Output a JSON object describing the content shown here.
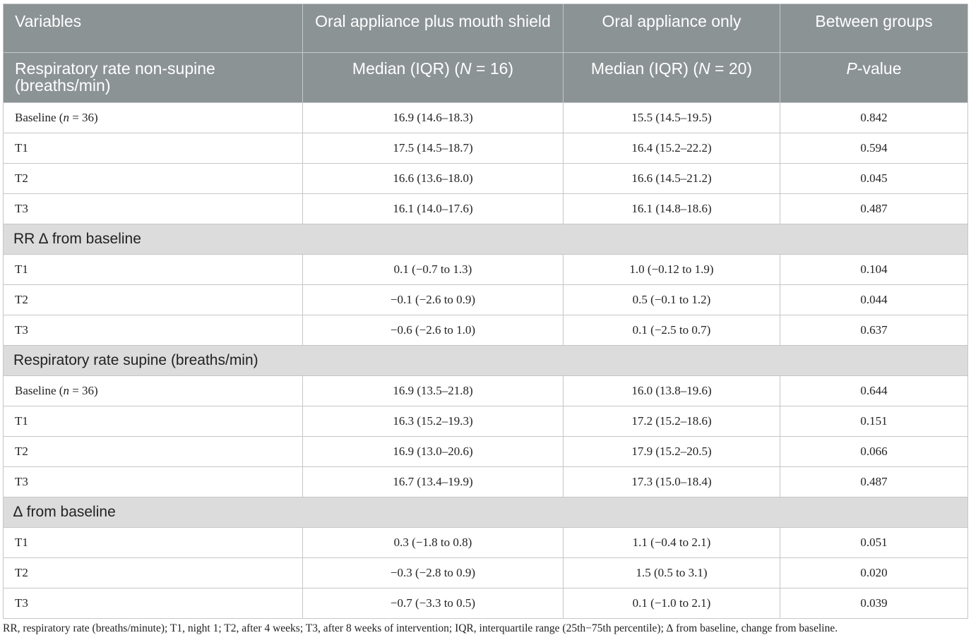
{
  "header": {
    "row1": [
      "Variables",
      "Oral appliance plus mouth shield",
      "Oral appliance only",
      "Between groups"
    ],
    "row2": {
      "variable": "Respiratory rate non-supine (breaths/min)",
      "col1_pre": "Median (IQR) (",
      "col1_n": "N",
      "col1_post": " = 16)",
      "col2_pre": "Median (IQR) (",
      "col2_n": "N",
      "col2_post": " = 20)",
      "col3_italic": "P",
      "col3_post": "-value"
    }
  },
  "sections": {
    "rr_delta": "RR ∆ from baseline",
    "supine": "Respiratory rate supine (breaths/min)",
    "supine_delta": "∆ from baseline"
  },
  "rows": {
    "nonsupine": [
      {
        "label_pre": "Baseline (",
        "label_n": "n",
        "label_post": " = 36)",
        "g1": "16.9 (14.6–18.3)",
        "g2": "15.5 (14.5–19.5)",
        "p": "0.842"
      },
      {
        "label": "T1",
        "g1": "17.5 (14.5–18.7)",
        "g2": "16.4 (15.2–22.2)",
        "p": "0.594"
      },
      {
        "label": "T2",
        "g1": "16.6 (13.6–18.0)",
        "g2": "16.6 (14.5–21.2)",
        "p": "0.045"
      },
      {
        "label": "T3",
        "g1": "16.1 (14.0–17.6)",
        "g2": "16.1 (14.8–18.6)",
        "p": "0.487"
      }
    ],
    "rr_delta": [
      {
        "label": "T1",
        "g1": "0.1 (−0.7 to 1.3)",
        "g2": "1.0 (−0.12 to 1.9)",
        "p": "0.104"
      },
      {
        "label": "T2",
        "g1": "−0.1 (−2.6 to 0.9)",
        "g2": "0.5 (−0.1 to 1.2)",
        "p": "0.044"
      },
      {
        "label": "T3",
        "g1": "−0.6 (−2.6 to 1.0)",
        "g2": "0.1 (−2.5 to 0.7)",
        "p": "0.637"
      }
    ],
    "supine": [
      {
        "label_pre": "Baseline (",
        "label_n": "n",
        "label_post": " = 36)",
        "g1": "16.9 (13.5–21.8)",
        "g2": "16.0 (13.8–19.6)",
        "p": "0.644"
      },
      {
        "label": "T1",
        "g1": "16.3 (15.2–19.3)",
        "g2": "17.2 (15.2–18.6)",
        "p": "0.151"
      },
      {
        "label": "T2",
        "g1": "16.9 (13.0–20.6)",
        "g2": "17.9 (15.2–20.5)",
        "p": "0.066"
      },
      {
        "label": "T3",
        "g1": "16.7 (13.4–19.9)",
        "g2": "17.3 (15.0–18.4)",
        "p": "0.487"
      }
    ],
    "supine_delta": [
      {
        "label": "T1",
        "g1": "0.3 (−1.8 to 0.8)",
        "g2": "1.1 (−0.4 to 2.1)",
        "p": "0.051"
      },
      {
        "label": "T2",
        "g1": "−0.3 (−2.8 to 0.9)",
        "g2": "1.5 (0.5 to 3.1)",
        "p": "0.020"
      },
      {
        "label": "T3",
        "g1": "−0.7 (−3.3 to 0.5)",
        "g2": "0.1 (−1.0 to 2.1)",
        "p": "0.039"
      }
    ]
  },
  "footnote": "RR, respiratory rate (breaths/minute); T1, night 1; T2, after 4 weeks; T3, after 8 weeks of intervention; IQR, interquartile range (25th−75th percentile); ∆ from baseline, change from baseline."
}
